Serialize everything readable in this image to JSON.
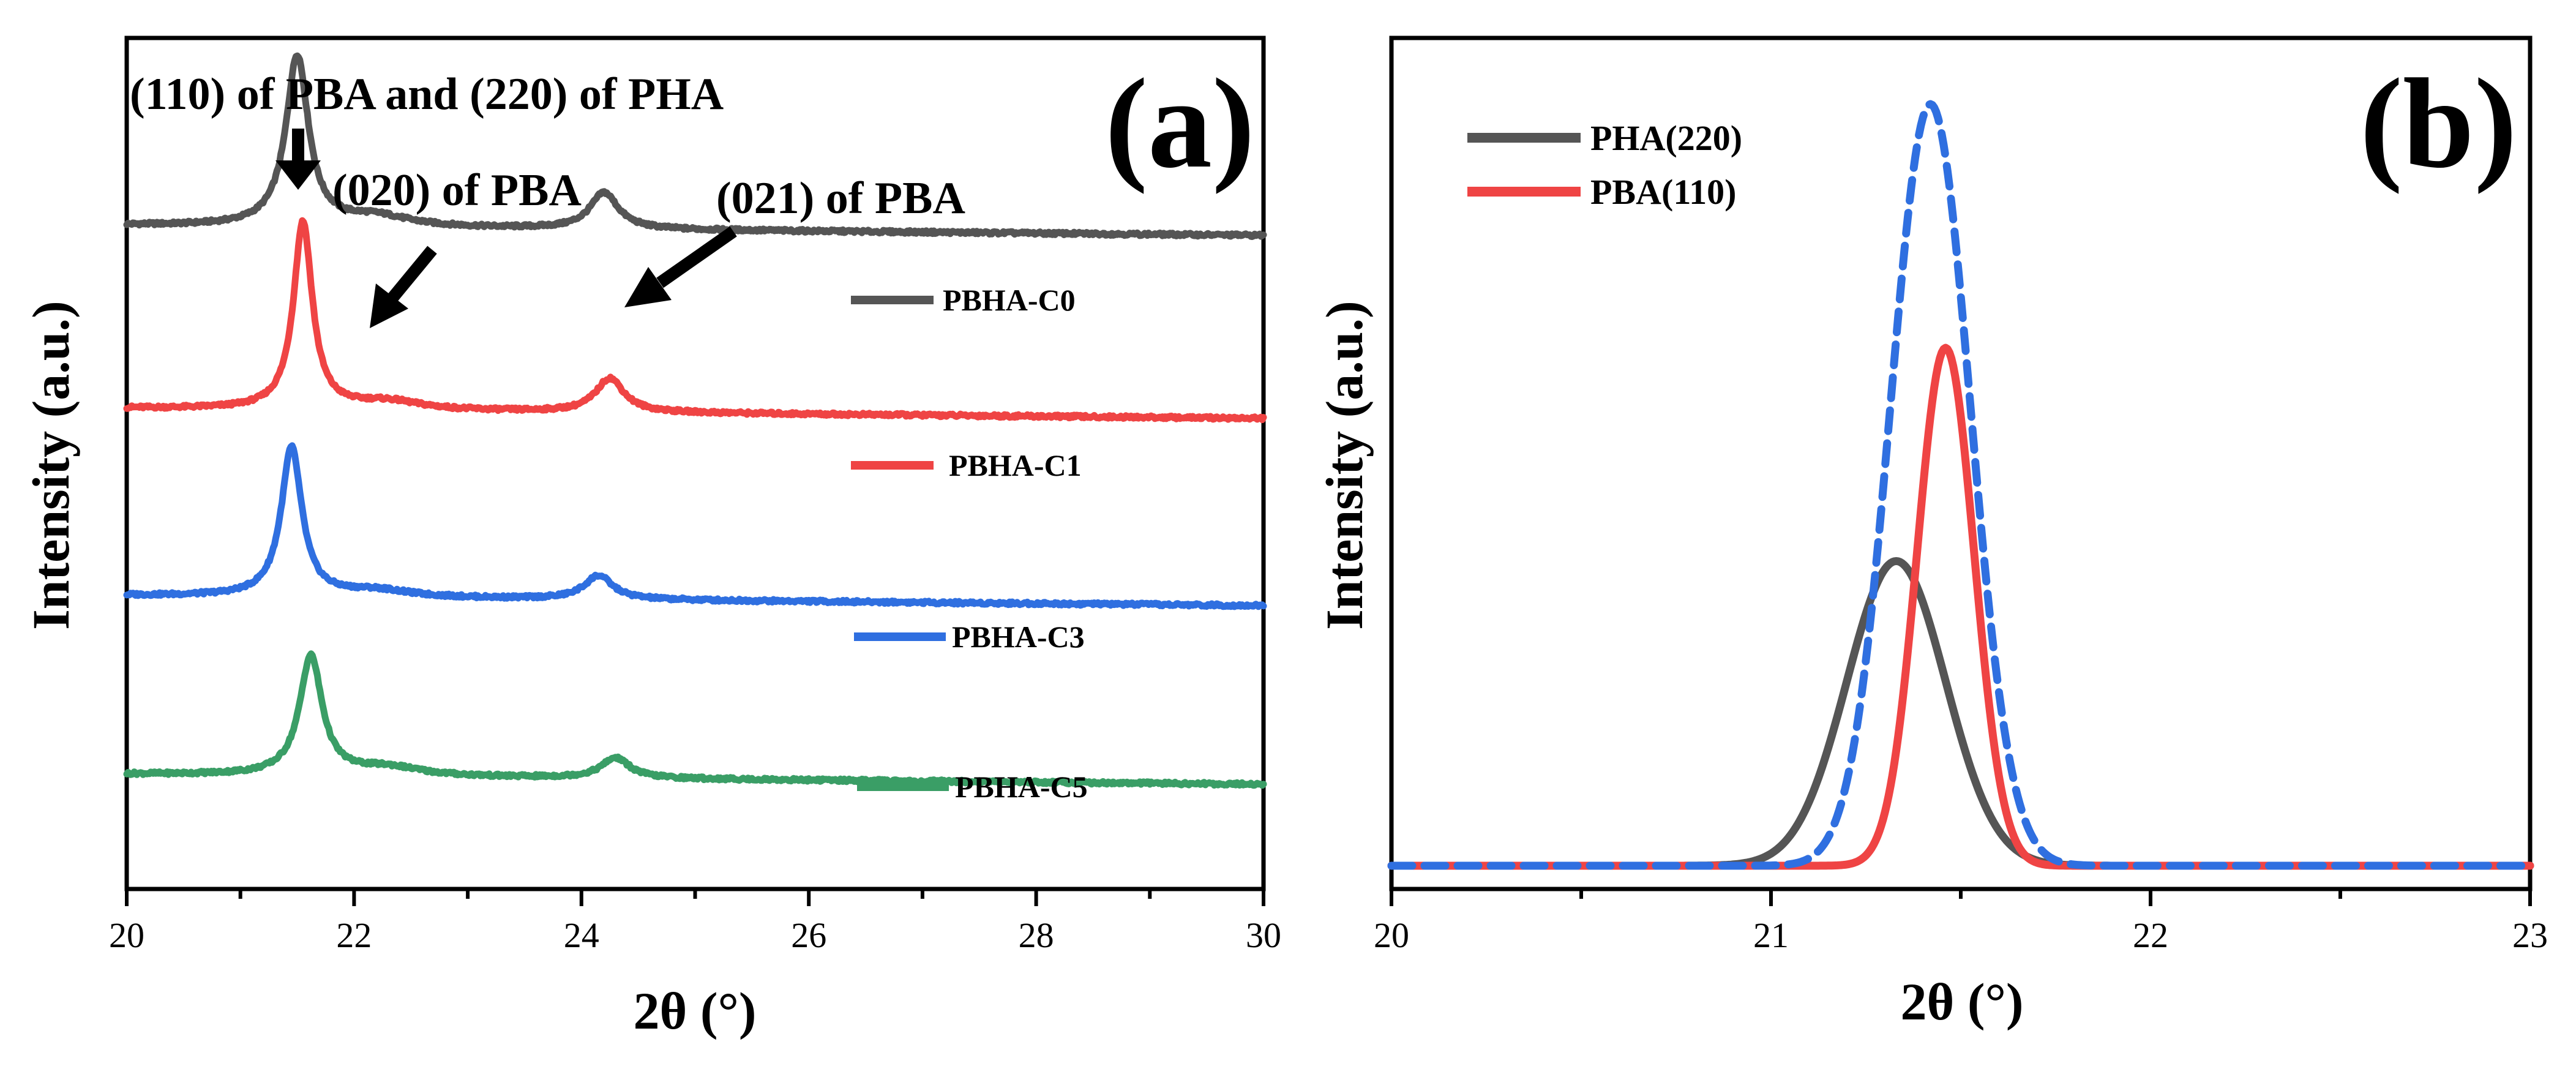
{
  "chart_data": [
    {
      "type": "line",
      "panel_tag": "(a)",
      "title": "",
      "xlabel": "2θ (°)",
      "ylabel": "Intensity (a.u.)",
      "xlim": [
        20,
        30
      ],
      "ylim": [
        0,
        10
      ],
      "grid": false,
      "x_ticks": [
        "20",
        "22",
        "24",
        "26",
        "28",
        "30"
      ],
      "x_tick_values": [
        20,
        22,
        24,
        26,
        28,
        30
      ],
      "y_ticks": [],
      "legend_placement": "right",
      "annotations": [
        {
          "text": "(110) of PBA and (220) of PHA",
          "x": 21.5
        },
        {
          "text": "(020) of PBA",
          "x": 22.1
        },
        {
          "text": "(021) of PBA",
          "x": 24.2
        }
      ],
      "series": [
        {
          "name": "PBHA-C0",
          "color": "#555555",
          "baseline": 7.8,
          "peaks": [
            {
              "center": 21.5,
              "height": 2.0,
              "width": 0.12
            },
            {
              "center": 22.2,
              "height": 0.12,
              "width": 0.35
            },
            {
              "center": 24.2,
              "height": 0.43,
              "width": 0.15
            }
          ]
        },
        {
          "name": "PBHA-C1",
          "color": "#ef4444",
          "baseline": 5.65,
          "peaks": [
            {
              "center": 21.55,
              "height": 2.2,
              "width": 0.1
            },
            {
              "center": 22.3,
              "height": 0.1,
              "width": 0.35
            },
            {
              "center": 24.25,
              "height": 0.4,
              "width": 0.15
            }
          ]
        },
        {
          "name": "PBHA-C3",
          "color": "#2f6fe0",
          "baseline": 3.45,
          "peaks": [
            {
              "center": 21.45,
              "height": 1.75,
              "width": 0.11
            },
            {
              "center": 22.2,
              "height": 0.08,
              "width": 0.35
            },
            {
              "center": 24.15,
              "height": 0.28,
              "width": 0.15
            }
          ]
        },
        {
          "name": "PBHA-C5",
          "color": "#3a9e66",
          "baseline": 1.35,
          "peaks": [
            {
              "center": 21.62,
              "height": 1.4,
              "width": 0.12
            },
            {
              "center": 22.3,
              "height": 0.1,
              "width": 0.35
            },
            {
              "center": 24.3,
              "height": 0.24,
              "width": 0.15
            }
          ]
        }
      ]
    },
    {
      "type": "line",
      "panel_tag": "(b)",
      "title": "",
      "xlabel": "2θ (°)",
      "ylabel": "Intensity (a.u.)",
      "xlim": [
        20,
        23
      ],
      "ylim": [
        0,
        1.1
      ],
      "grid": false,
      "x_ticks": [
        "20",
        "21",
        "22",
        "23"
      ],
      "x_tick_values": [
        20,
        21,
        22,
        23
      ],
      "y_ticks": [],
      "legend_placement": "top-left",
      "series": [
        {
          "name": "PHA(220)",
          "color": "#555555",
          "style": "solid",
          "center": 21.33,
          "height": 0.4,
          "sigma": 0.13
        },
        {
          "name": "PBA(110)",
          "color": "#ef4444",
          "style": "solid",
          "center": 21.46,
          "height": 0.68,
          "sigma": 0.075
        },
        {
          "name": "",
          "color": "#2f6fe0",
          "style": "dashed",
          "center": 21.42,
          "height": 1.0,
          "sigma": 0.105
        }
      ]
    }
  ]
}
